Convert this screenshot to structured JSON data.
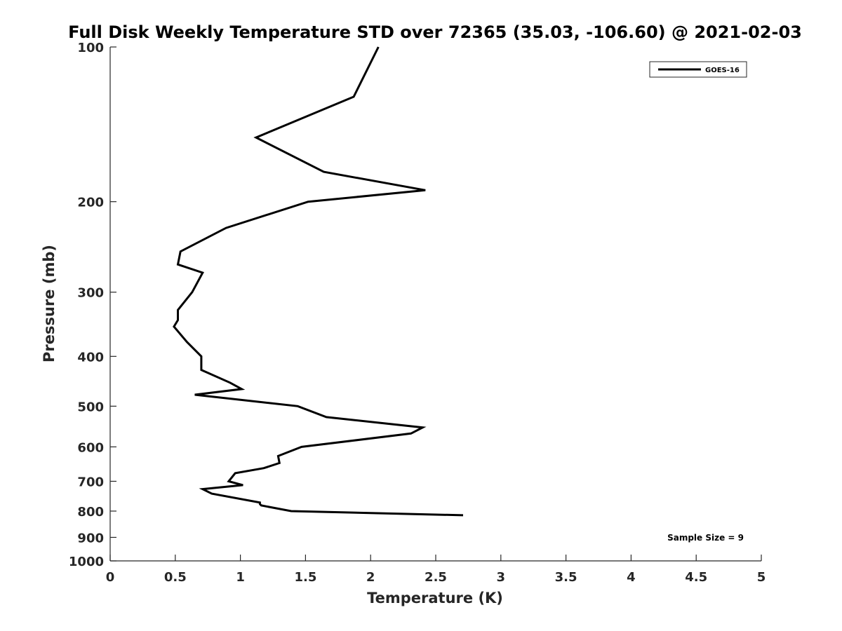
{
  "chart_data": {
    "type": "line",
    "title": "Full Disk Weekly Temperature STD over 72365 (35.03, -106.60) @ 2021-02-03",
    "xlabel": "Temperature (K)",
    "ylabel": "Pressure (mb)",
    "xlim": [
      0,
      5
    ],
    "ylim": [
      1000,
      100
    ],
    "y_scale": "log",
    "y_reversed": true,
    "x_ticks": [
      "0",
      "0.5",
      "1",
      "1.5",
      "2",
      "2.5",
      "3",
      "3.5",
      "4",
      "4.5",
      "5"
    ],
    "y_ticks": [
      "100",
      "200",
      "300",
      "400",
      "500",
      "600",
      "700",
      "800",
      "900",
      "1000"
    ],
    "grid": false,
    "legend_position": "top-right",
    "line_color": "#000000",
    "series": [
      {
        "name": "GOES-16",
        "points": [
          [
            2.06,
            100
          ],
          [
            1.87,
            125
          ],
          [
            1.12,
            150
          ],
          [
            1.64,
            175
          ],
          [
            2.42,
            190
          ],
          [
            1.52,
            200
          ],
          [
            0.89,
            225
          ],
          [
            0.54,
            250
          ],
          [
            0.52,
            265
          ],
          [
            0.71,
            275
          ],
          [
            0.63,
            300
          ],
          [
            0.52,
            325
          ],
          [
            0.52,
            340
          ],
          [
            0.49,
            350
          ],
          [
            0.59,
            375
          ],
          [
            0.7,
            400
          ],
          [
            0.7,
            425
          ],
          [
            0.92,
            450
          ],
          [
            1.01,
            463
          ],
          [
            0.65,
            475
          ],
          [
            1.44,
            500
          ],
          [
            1.66,
            525
          ],
          [
            2.4,
            550
          ],
          [
            2.31,
            565
          ],
          [
            1.47,
            600
          ],
          [
            1.29,
            625
          ],
          [
            1.3,
            645
          ],
          [
            1.18,
            660
          ],
          [
            0.96,
            675
          ],
          [
            0.91,
            700
          ],
          [
            1.02,
            712
          ],
          [
            0.71,
            725
          ],
          [
            0.78,
            740
          ],
          [
            1.15,
            770
          ],
          [
            1.15,
            775
          ],
          [
            1.16,
            780
          ],
          [
            1.39,
            800
          ],
          [
            2.71,
            815
          ]
        ]
      }
    ],
    "annotation": "Sample Size = 9"
  }
}
